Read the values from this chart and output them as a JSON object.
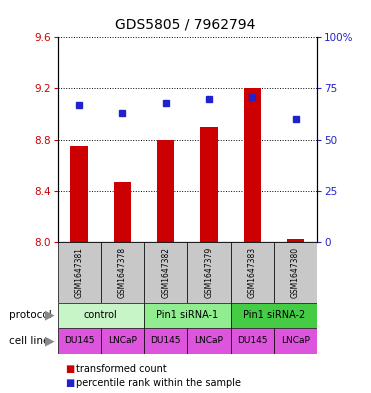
{
  "title": "GDS5805 / 7962794",
  "samples": [
    "GSM1647381",
    "GSM1647378",
    "GSM1647382",
    "GSM1647379",
    "GSM1647383",
    "GSM1647380"
  ],
  "red_values": [
    8.75,
    8.47,
    8.8,
    8.9,
    9.2,
    8.02
  ],
  "blue_values": [
    67,
    63,
    68,
    70,
    71,
    60
  ],
  "ylim_left": [
    8.0,
    9.6
  ],
  "ylim_right": [
    0,
    100
  ],
  "yticks_left": [
    8.0,
    8.4,
    8.8,
    9.2,
    9.6
  ],
  "yticks_right": [
    0,
    25,
    50,
    75,
    100
  ],
  "protocols": [
    {
      "label": "control",
      "span": [
        0,
        2
      ]
    },
    {
      "label": "Pin1 siRNA-1",
      "span": [
        2,
        4
      ]
    },
    {
      "label": "Pin1 siRNA-2",
      "span": [
        4,
        6
      ]
    }
  ],
  "protocol_colors": [
    "#c8f5c8",
    "#90ee90",
    "#44cc44"
  ],
  "cell_labels": [
    "DU145",
    "LNCaP",
    "DU145",
    "LNCaP",
    "DU145",
    "LNCaP"
  ],
  "cell_color": "#dd55dd",
  "bar_color": "#cc0000",
  "dot_color": "#2222cc",
  "bar_width": 0.4,
  "bg_color": "#ffffff",
  "left_tick_color": "#cc0000",
  "right_tick_color": "#2222cc",
  "sample_box_color": "#c8c8c8",
  "arrow_color": "#888888"
}
